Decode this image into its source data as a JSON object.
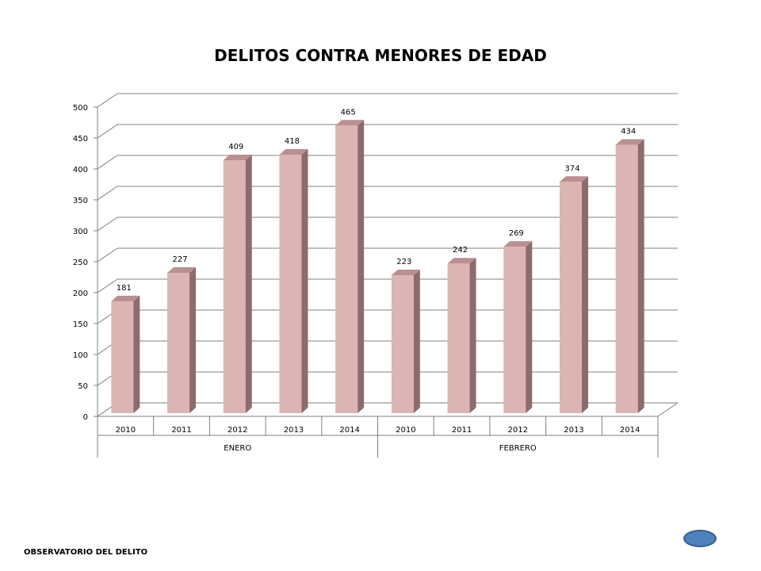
{
  "footer": {
    "text": "OBSERVATORIO DEL DELITO"
  },
  "colors": {
    "bar_front": "#dbb4b3",
    "bar_side": "#8e6b6b",
    "bar_top": "#b98f8f",
    "grid": "#808080",
    "nav_button": "#4f81bd"
  },
  "nav_button_icon": "oval-button",
  "chart_data": {
    "type": "bar",
    "title": "DELITOS CONTRA MENORES DE EDAD",
    "xlabel": "",
    "ylabel": "",
    "ylim": [
      0,
      500
    ],
    "yticks": [
      0,
      50,
      100,
      150,
      200,
      250,
      300,
      350,
      400,
      450,
      500
    ],
    "grid": true,
    "legend": "none",
    "groups": [
      {
        "label": "ENERO",
        "categories": [
          "2010",
          "2011",
          "2012",
          "2013",
          "2014"
        ],
        "values": [
          181,
          227,
          409,
          418,
          465
        ]
      },
      {
        "label": "FEBRERO",
        "categories": [
          "2010",
          "2011",
          "2012",
          "2013",
          "2014"
        ],
        "values": [
          223,
          242,
          269,
          374,
          434
        ]
      }
    ]
  }
}
